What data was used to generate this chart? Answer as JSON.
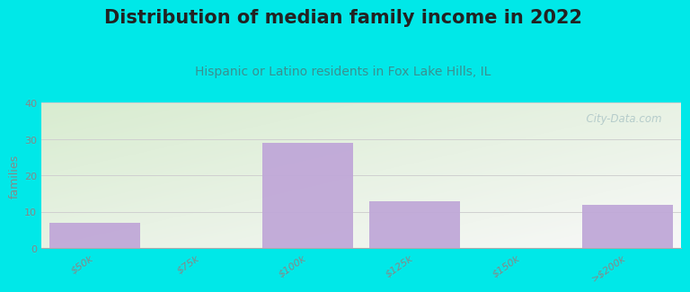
{
  "title": "Distribution of median family income in 2022",
  "subtitle": "Hispanic or Latino residents in Fox Lake Hills, IL",
  "ylabel": "families",
  "categories": [
    "$50k",
    "$75k",
    "$100k",
    "$125k",
    "$150k",
    ">$200k"
  ],
  "values": [
    7,
    0,
    29,
    13,
    0,
    12
  ],
  "bar_color": "#c0a8d8",
  "bar_edge_color": "#b090c0",
  "ylim": [
    0,
    40
  ],
  "yticks": [
    0,
    10,
    20,
    30,
    40
  ],
  "background_outer": "#00e8e8",
  "background_plot_top_left": "#d8ecd0",
  "background_plot_bottom_right": "#f8f8f8",
  "grid_color": "#d0d0d0",
  "title_fontsize": 15,
  "subtitle_fontsize": 10,
  "ylabel_fontsize": 9,
  "tick_fontsize": 8,
  "watermark_text": "  City-Data.com",
  "watermark_color": "#b0c8c8",
  "title_color": "#222222",
  "subtitle_color": "#3a9090",
  "tick_color": "#888888"
}
